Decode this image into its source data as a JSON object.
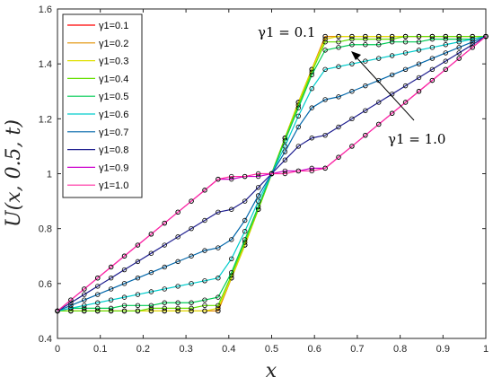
{
  "chart_data": {
    "type": "line",
    "title": "",
    "xlabel": "x",
    "ylabel": "U(x, 0.5, t)",
    "xlim": [
      0,
      1
    ],
    "ylim": [
      0.4,
      1.6
    ],
    "xticks": [
      "0",
      "0.1",
      "0.2",
      "0.3",
      "0.4",
      "0.5",
      "0.6",
      "0.7",
      "0.8",
      "0.9",
      "1"
    ],
    "yticks": [
      "0.4",
      "0.6",
      "0.8",
      "1",
      "1.2",
      "1.4",
      "1.6"
    ],
    "grid": false,
    "legend_position": "top-left",
    "x": [
      0,
      0.0312,
      0.0625,
      0.0938,
      0.125,
      0.1562,
      0.1875,
      0.2188,
      0.25,
      0.2812,
      0.3125,
      0.3438,
      0.375,
      0.4062,
      0.4375,
      0.4688,
      0.5,
      0.5312,
      0.5625,
      0.5938,
      0.625,
      0.6562,
      0.6875,
      0.7188,
      0.75,
      0.7812,
      0.8125,
      0.8438,
      0.875,
      0.9062,
      0.9375,
      0.9688,
      1
    ],
    "series": [
      {
        "name": "γ1=0.1",
        "color": "#ff0000",
        "values": [
          0.5,
          0.5,
          0.5,
          0.5,
          0.5,
          0.5,
          0.5,
          0.5,
          0.5,
          0.5,
          0.5,
          0.5,
          0.5,
          0.62,
          0.74,
          0.87,
          1.0,
          1.13,
          1.26,
          1.38,
          1.5,
          1.5,
          1.5,
          1.5,
          1.5,
          1.5,
          1.5,
          1.5,
          1.5,
          1.5,
          1.5,
          1.5,
          1.5
        ]
      },
      {
        "name": "γ1=0.2",
        "color": "#e09000",
        "values": [
          0.5,
          0.5,
          0.5,
          0.5,
          0.5,
          0.5,
          0.5,
          0.5,
          0.5,
          0.5,
          0.5,
          0.5,
          0.5,
          0.62,
          0.74,
          0.87,
          1.0,
          1.13,
          1.26,
          1.38,
          1.5,
          1.5,
          1.5,
          1.5,
          1.5,
          1.5,
          1.5,
          1.5,
          1.5,
          1.5,
          1.5,
          1.5,
          1.5
        ]
      },
      {
        "name": "γ1=0.3",
        "color": "#e0e000",
        "values": [
          0.5,
          0.5,
          0.5,
          0.5,
          0.5,
          0.5,
          0.5,
          0.5,
          0.5,
          0.5,
          0.5,
          0.5,
          0.51,
          0.62,
          0.74,
          0.87,
          1.0,
          1.13,
          1.26,
          1.38,
          1.49,
          1.5,
          1.5,
          1.5,
          1.5,
          1.5,
          1.5,
          1.5,
          1.5,
          1.5,
          1.5,
          1.5,
          1.5
        ]
      },
      {
        "name": "γ1=0.4",
        "color": "#66e000",
        "values": [
          0.5,
          0.5,
          0.5,
          0.5,
          0.5,
          0.5,
          0.5,
          0.51,
          0.51,
          0.51,
          0.51,
          0.52,
          0.52,
          0.63,
          0.75,
          0.87,
          1.0,
          1.13,
          1.25,
          1.37,
          1.48,
          1.48,
          1.49,
          1.49,
          1.49,
          1.49,
          1.5,
          1.5,
          1.5,
          1.5,
          1.5,
          1.5,
          1.5
        ]
      },
      {
        "name": "γ1=0.5",
        "color": "#00cc55",
        "values": [
          0.5,
          0.51,
          0.51,
          0.51,
          0.51,
          0.52,
          0.52,
          0.52,
          0.53,
          0.53,
          0.53,
          0.54,
          0.55,
          0.64,
          0.76,
          0.88,
          1.0,
          1.12,
          1.24,
          1.36,
          1.45,
          1.46,
          1.47,
          1.47,
          1.47,
          1.48,
          1.48,
          1.48,
          1.49,
          1.49,
          1.49,
          1.49,
          1.5
        ]
      },
      {
        "name": "γ1=0.6",
        "color": "#00cccc",
        "values": [
          0.5,
          0.51,
          0.52,
          0.53,
          0.54,
          0.55,
          0.56,
          0.57,
          0.58,
          0.59,
          0.6,
          0.61,
          0.62,
          0.69,
          0.79,
          0.9,
          1.0,
          1.1,
          1.21,
          1.31,
          1.38,
          1.39,
          1.4,
          1.41,
          1.42,
          1.43,
          1.44,
          1.45,
          1.46,
          1.47,
          1.48,
          1.49,
          1.5
        ]
      },
      {
        "name": "γ1=0.7",
        "color": "#0066aa",
        "values": [
          0.5,
          0.52,
          0.54,
          0.56,
          0.58,
          0.6,
          0.62,
          0.64,
          0.66,
          0.68,
          0.7,
          0.72,
          0.73,
          0.76,
          0.83,
          0.92,
          1.0,
          1.08,
          1.17,
          1.24,
          1.27,
          1.28,
          1.3,
          1.32,
          1.34,
          1.36,
          1.38,
          1.4,
          1.42,
          1.44,
          1.46,
          1.48,
          1.5
        ]
      },
      {
        "name": "γ1=0.8",
        "color": "#202090",
        "values": [
          0.5,
          0.53,
          0.56,
          0.59,
          0.62,
          0.65,
          0.68,
          0.71,
          0.74,
          0.77,
          0.8,
          0.83,
          0.86,
          0.87,
          0.9,
          0.95,
          1.0,
          1.05,
          1.1,
          1.13,
          1.14,
          1.17,
          1.2,
          1.23,
          1.26,
          1.29,
          1.32,
          1.35,
          1.38,
          1.41,
          1.44,
          1.47,
          1.5
        ]
      },
      {
        "name": "γ1=0.9",
        "color": "#cc00cc",
        "values": [
          0.5,
          0.54,
          0.58,
          0.62,
          0.66,
          0.7,
          0.74,
          0.78,
          0.82,
          0.86,
          0.9,
          0.94,
          0.98,
          0.98,
          0.99,
          0.99,
          1.0,
          1.01,
          1.01,
          1.02,
          1.02,
          1.06,
          1.1,
          1.14,
          1.18,
          1.22,
          1.26,
          1.3,
          1.34,
          1.38,
          1.42,
          1.46,
          1.5
        ]
      },
      {
        "name": "γ1=1.0",
        "color": "#ff2ca0",
        "values": [
          0.5,
          0.54,
          0.58,
          0.62,
          0.66,
          0.7,
          0.74,
          0.78,
          0.82,
          0.86,
          0.9,
          0.94,
          0.98,
          0.99,
          0.99,
          1.0,
          1.0,
          1.0,
          1.01,
          1.01,
          1.02,
          1.06,
          1.1,
          1.14,
          1.18,
          1.22,
          1.26,
          1.3,
          1.34,
          1.38,
          1.42,
          1.46,
          1.5
        ]
      }
    ],
    "marker_color": "#000000",
    "annotations": [
      {
        "text": "γ1 = 0.1"
      },
      {
        "text": "γ1 = 1.0"
      }
    ]
  }
}
